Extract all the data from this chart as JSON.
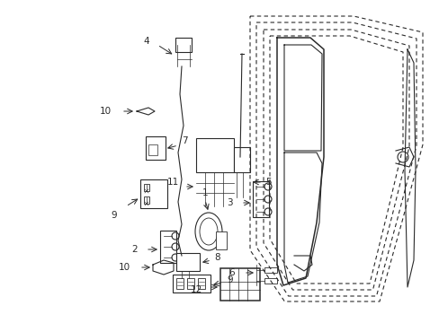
{
  "bg_color": "#ffffff",
  "fig_width": 4.89,
  "fig_height": 3.6,
  "dpi": 100,
  "line_color": "#2a2a2a",
  "dash_pattern": [
    4,
    3
  ]
}
